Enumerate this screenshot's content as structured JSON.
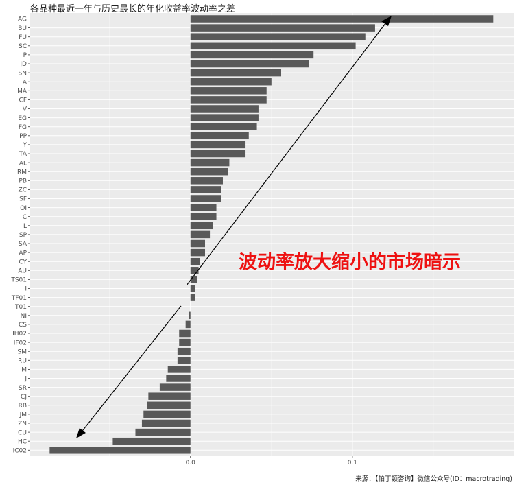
{
  "chart_data": {
    "type": "bar",
    "orientation": "horizontal",
    "title": "各品种最近一年与历史最长的年化收益率波动率之差",
    "categories": [
      "AG",
      "BU",
      "FU",
      "SC",
      "P",
      "JD",
      "SN",
      "A",
      "MA",
      "CF",
      "V",
      "EG",
      "FG",
      "PP",
      "Y",
      "TA",
      "AL",
      "RM",
      "PB",
      "ZC",
      "SF",
      "OI",
      "C",
      "L",
      "SP",
      "SA",
      "AP",
      "CY",
      "AU",
      "TS01",
      "I",
      "TF01",
      "T01",
      "NI",
      "CS",
      "IH02",
      "IF02",
      "SM",
      "RU",
      "M",
      "J",
      "SR",
      "CJ",
      "RB",
      "JM",
      "ZN",
      "CU",
      "HC",
      "IC02"
    ],
    "values": [
      0.187,
      0.114,
      0.108,
      0.102,
      0.076,
      0.073,
      0.056,
      0.05,
      0.047,
      0.047,
      0.042,
      0.042,
      0.041,
      0.036,
      0.034,
      0.034,
      0.024,
      0.023,
      0.02,
      0.019,
      0.019,
      0.016,
      0.016,
      0.014,
      0.012,
      0.009,
      0.009,
      0.006,
      0.005,
      0.004,
      0.003,
      0.003,
      0.0,
      -0.001,
      -0.003,
      -0.007,
      -0.007,
      -0.008,
      -0.008,
      -0.014,
      -0.015,
      -0.019,
      -0.026,
      -0.027,
      -0.029,
      -0.03,
      -0.034,
      -0.048,
      -0.087
    ],
    "x_ticks": [
      "0.0",
      "0.1"
    ],
    "xlim": [
      -0.099,
      0.2
    ],
    "xlabel": "",
    "ylabel": "",
    "grid": true,
    "bar_color": "#595959",
    "panel_color": "#ebebeb",
    "annotation": "波动率放大缩小的市场暗示",
    "annotation_color": "#ee1111",
    "source": "来源：【帕丁顿咨询】微信公众号(ID：macrotrading)"
  }
}
